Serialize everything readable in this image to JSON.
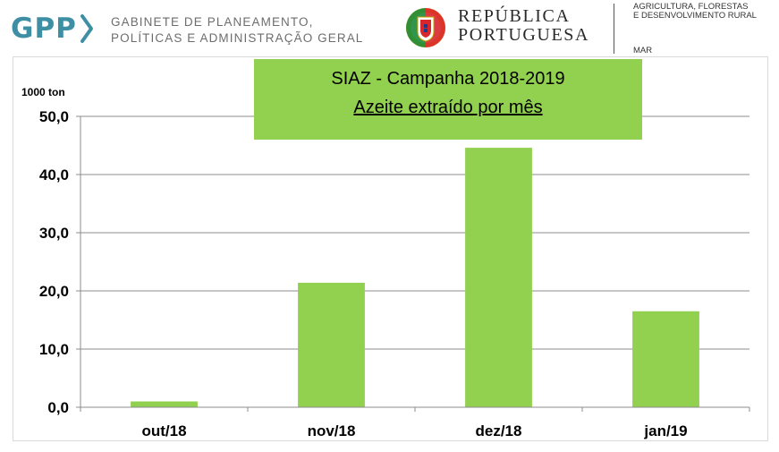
{
  "header": {
    "gpp": {
      "letters": "GPP",
      "line1": "GABINETE DE PLANEAMENTO,",
      "line2": "POLÍTICAS E ADMINISTRAÇÃO GERAL",
      "color": "#3e8fa4"
    },
    "republica": {
      "line1": "REPÚBLICA",
      "line2": "PORTUGUESA"
    },
    "ministry": {
      "line1": "AGRICULTURA, FLORESTAS",
      "line2": "E DESENVOLVIMENTO RURAL",
      "line3": "MAR"
    }
  },
  "chart_data": {
    "type": "bar",
    "title": "SIAZ - Campanha 2018-2019",
    "subtitle": "Azeite extraído por mês",
    "ylabel": "1000 ton",
    "xlabel": "",
    "categories": [
      "out/18",
      "nov/18",
      "dez/18",
      "jan/19"
    ],
    "values": [
      1.0,
      21.4,
      44.6,
      16.5
    ],
    "ylim": [
      0,
      50
    ],
    "yticks": [
      "0,0",
      "10,0",
      "20,0",
      "30,0",
      "40,0",
      "50,0"
    ],
    "ytick_values": [
      0,
      10,
      20,
      30,
      40,
      50
    ],
    "grid": true,
    "legend": "none",
    "bar_color": "#92d050",
    "title_bg_color": "#92d050"
  }
}
